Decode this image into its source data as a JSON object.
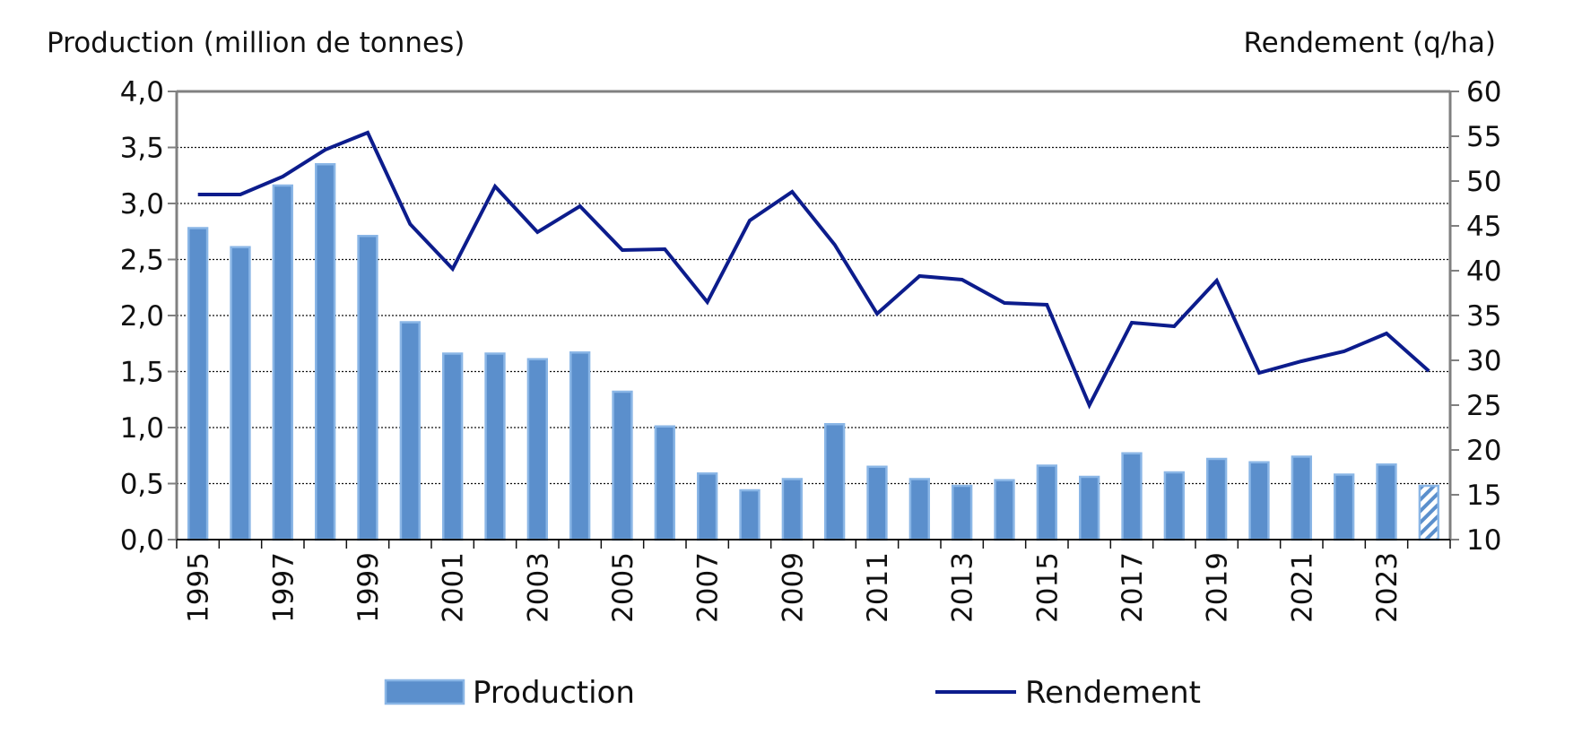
{
  "chart_data": {
    "type": "bar+line",
    "title": "",
    "left_axis_title": "Production (million de tonnes)",
    "right_axis_title": "Rendement (q/ha)",
    "categories": [
      "1995",
      "1996",
      "1997",
      "1998",
      "1999",
      "2000",
      "2001",
      "2002",
      "2003",
      "2004",
      "2005",
      "2006",
      "2007",
      "2008",
      "2009",
      "2010",
      "2011",
      "2012",
      "2013",
      "2014",
      "2015",
      "2016",
      "2017",
      "2018",
      "2019",
      "2020",
      "2021",
      "2022",
      "2023",
      "2024"
    ],
    "x_tick_labels": [
      "1995",
      "1997",
      "1999",
      "2001",
      "2003",
      "2005",
      "2007",
      "2009",
      "2011",
      "2013",
      "2015",
      "2017",
      "2019",
      "2021",
      "2023"
    ],
    "left_ylim": [
      0,
      4
    ],
    "left_ticks": [
      "0,0",
      "0,5",
      "1,0",
      "1,5",
      "2,0",
      "2,5",
      "3,0",
      "3,5",
      "4,0"
    ],
    "right_ylim": [
      10,
      60
    ],
    "right_ticks": [
      "10",
      "15",
      "20",
      "25",
      "30",
      "35",
      "40",
      "45",
      "50",
      "55",
      "60"
    ],
    "grid": true,
    "legend_position": "bottom",
    "series": [
      {
        "name": "Production",
        "type": "bar",
        "axis": "left",
        "color": "#5b8fcc",
        "edge_color": "#8ab6e6",
        "values": [
          2.78,
          2.61,
          3.16,
          3.35,
          2.71,
          1.94,
          1.66,
          1.66,
          1.61,
          1.67,
          1.32,
          1.01,
          0.59,
          0.44,
          0.54,
          1.03,
          0.65,
          0.54,
          0.48,
          0.53,
          0.66,
          0.56,
          0.77,
          0.6,
          0.72,
          0.69,
          0.74,
          0.58,
          0.67,
          0.48
        ],
        "hatched_last": true
      },
      {
        "name": "Rendement",
        "type": "line",
        "axis": "right",
        "color": "#0c1c8c",
        "values": [
          48.5,
          48.5,
          50.5,
          53.5,
          55.4,
          45.2,
          40.2,
          49.4,
          44.3,
          47.2,
          42.3,
          42.4,
          36.5,
          45.6,
          48.8,
          42.9,
          35.2,
          39.4,
          39.0,
          36.4,
          36.2,
          25.0,
          34.2,
          33.8,
          38.9,
          28.6,
          29.9,
          31.0,
          33.0,
          28.8
        ]
      }
    ]
  }
}
